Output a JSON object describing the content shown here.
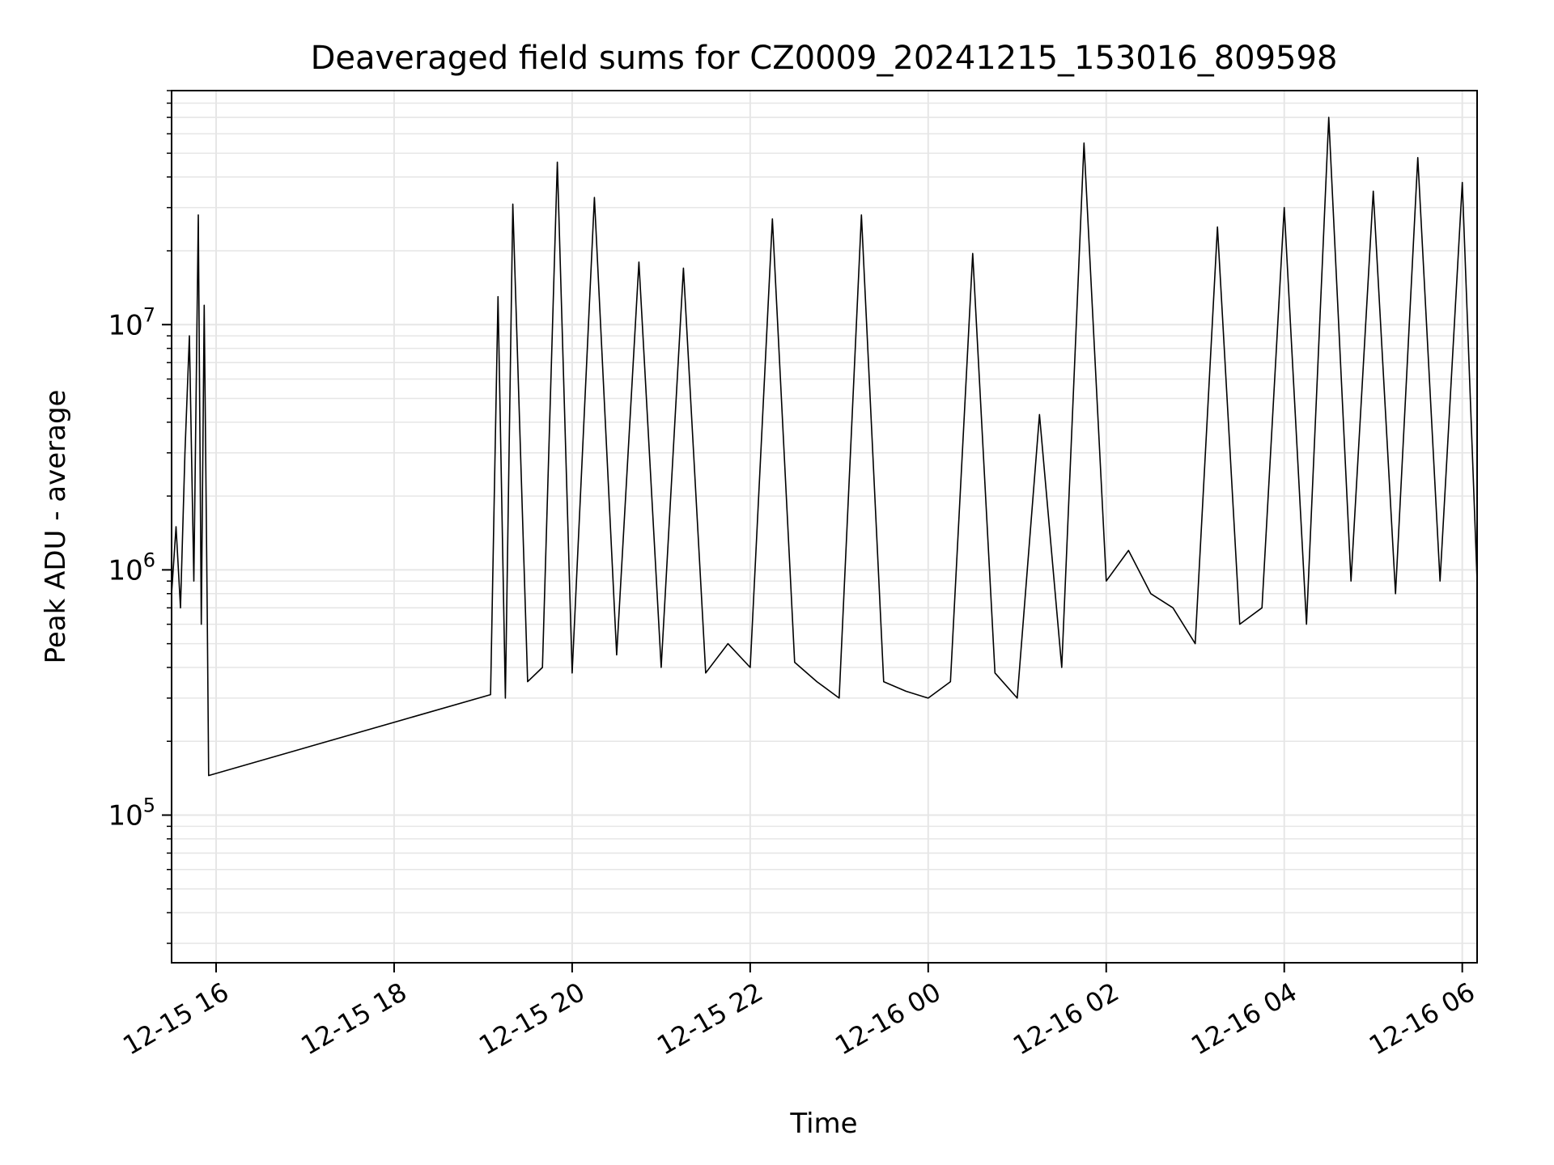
{
  "chart_data": {
    "type": "line",
    "title": "Deaveraged field sums for CZ0009_20241215_153016_809598",
    "xlabel": "Time",
    "ylabel": "Peak ADU - average",
    "y_scale": "log",
    "ylim": [
      25000,
      90000000
    ],
    "xlim": [
      "2024-12-15 15:30",
      "2024-12-16 06:10"
    ],
    "x_ticks": [
      {
        "label": "12-15 16",
        "value": "2024-12-15 16:00"
      },
      {
        "label": "12-15 18",
        "value": "2024-12-15 18:00"
      },
      {
        "label": "12-15 20",
        "value": "2024-12-15 20:00"
      },
      {
        "label": "12-15 22",
        "value": "2024-12-15 22:00"
      },
      {
        "label": "12-16 00",
        "value": "2024-12-16 00:00"
      },
      {
        "label": "12-16 02",
        "value": "2024-12-16 02:00"
      },
      {
        "label": "12-16 04",
        "value": "2024-12-16 04:00"
      },
      {
        "label": "12-16 06",
        "value": "2024-12-16 06:00"
      }
    ],
    "y_ticks": [
      {
        "base": "10",
        "exp": "5",
        "value": 100000
      },
      {
        "base": "10",
        "exp": "6",
        "value": 1000000
      },
      {
        "base": "10",
        "exp": "7",
        "value": 10000000
      }
    ],
    "grid": true,
    "line_color": "#000000",
    "grid_color": "#e6e6e6",
    "series": [
      {
        "x": [
          "2024-12-15 15:30",
          "2024-12-15 15:33",
          "2024-12-15 15:36",
          "2024-12-15 15:39",
          "2024-12-15 15:42",
          "2024-12-15 15:45",
          "2024-12-15 15:48",
          "2024-12-15 15:50",
          "2024-12-15 15:52",
          "2024-12-15 15:54",
          "2024-12-15 15:55",
          "2024-12-15 19:05",
          "2024-12-15 19:10",
          "2024-12-15 19:15",
          "2024-12-15 19:20",
          "2024-12-15 19:30",
          "2024-12-15 19:40",
          "2024-12-15 19:50",
          "2024-12-15 20:00",
          "2024-12-15 20:15",
          "2024-12-15 20:30",
          "2024-12-15 20:45",
          "2024-12-15 21:00",
          "2024-12-15 21:15",
          "2024-12-15 21:30",
          "2024-12-15 21:45",
          "2024-12-15 22:00",
          "2024-12-15 22:15",
          "2024-12-15 22:30",
          "2024-12-15 22:45",
          "2024-12-15 23:00",
          "2024-12-15 23:15",
          "2024-12-15 23:30",
          "2024-12-15 23:45",
          "2024-12-16 00:00",
          "2024-12-16 00:15",
          "2024-12-16 00:30",
          "2024-12-16 00:45",
          "2024-12-16 01:00",
          "2024-12-16 01:15",
          "2024-12-16 01:30",
          "2024-12-16 01:45",
          "2024-12-16 02:00",
          "2024-12-16 02:15",
          "2024-12-16 02:30",
          "2024-12-16 02:45",
          "2024-12-16 03:00",
          "2024-12-16 03:15",
          "2024-12-16 03:30",
          "2024-12-16 03:45",
          "2024-12-16 04:00",
          "2024-12-16 04:15",
          "2024-12-16 04:30",
          "2024-12-16 04:45",
          "2024-12-16 05:00",
          "2024-12-16 05:15",
          "2024-12-16 05:30",
          "2024-12-16 05:45",
          "2024-12-16 06:00",
          "2024-12-16 06:10"
        ],
        "y": [
          800000,
          1500000,
          700000,
          3000000,
          9000000,
          900000,
          28000000,
          600000,
          12000000,
          700000,
          145000,
          310000,
          13000000,
          300000,
          31000000,
          350000,
          400000,
          46000000,
          380000,
          33000000,
          450000,
          18000000,
          400000,
          17000000,
          380000,
          500000,
          400000,
          27000000,
          420000,
          350000,
          300000,
          28000000,
          350000,
          320000,
          300000,
          350000,
          19500000,
          380000,
          300000,
          4300000,
          400000,
          55000000,
          900000,
          1200000,
          800000,
          700000,
          500000,
          25000000,
          600000,
          700000,
          30000000,
          600000,
          70000000,
          900000,
          35000000,
          800000,
          48000000,
          900000,
          38000000,
          900000
        ]
      }
    ]
  }
}
